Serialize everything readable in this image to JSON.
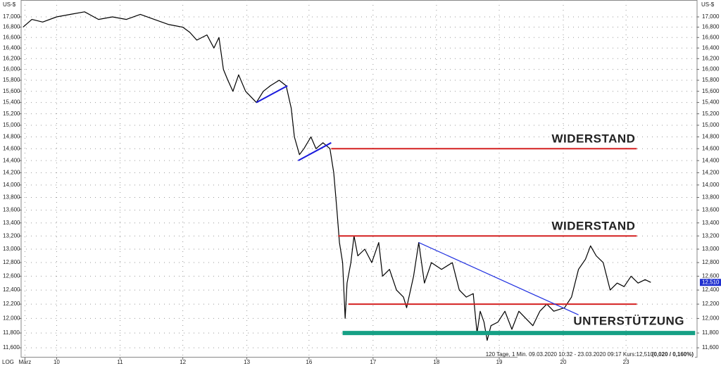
{
  "chart_data": {
    "type": "line",
    "log_scale": true,
    "grid": true,
    "unit": "US-$",
    "scale_label": "LOG",
    "footer": "120 Tage, 1 Min. 09.03.2020 10:32 - 23.03.2020 09:17 Kurs:12,510",
    "footer_bold": "(0,020 / 0,160%)",
    "last_value": 12510,
    "last_label": "12,510",
    "color": "#000000",
    "x": [
      -0.03,
      0.11,
      0.28,
      0.5,
      0.72,
      0.94,
      1.16,
      1.38,
      1.6,
      1.82,
      2.04,
      2.27,
      2.49,
      2.6,
      2.71,
      2.87,
      2.98,
      3.06,
      3.13,
      3.2,
      3.28,
      3.37,
      3.48,
      3.65,
      3.76,
      3.87,
      4.01,
      4.12,
      4.2,
      4.25,
      4.33,
      4.4,
      4.51,
      4.59,
      4.7,
      4.81,
      4.87,
      4.92,
      4.96,
      5.01,
      5.05,
      5.08,
      5.14,
      5.19,
      5.25,
      5.36,
      5.47,
      5.58,
      5.64,
      5.75,
      5.86,
      5.97,
      6.02,
      6.13,
      6.21,
      6.3,
      6.41,
      6.57,
      6.74,
      6.85,
      6.96,
      7.07,
      7.13,
      7.18,
      7.24,
      7.29,
      7.35,
      7.46,
      7.57,
      7.68,
      7.79,
      7.9,
      8.01,
      8.12,
      8.23,
      8.34,
      8.51,
      8.62,
      8.73,
      8.84,
      8.92,
      9.01,
      9.12,
      9.23,
      9.34,
      9.45,
      9.56,
      9.67,
      9.78,
      9.87
    ],
    "values": [
      16800,
      16950,
      16900,
      17000,
      17050,
      17100,
      16950,
      17000,
      16950,
      17050,
      16950,
      16850,
      16800,
      16700,
      16550,
      16650,
      16400,
      16600,
      16000,
      15800,
      15600,
      15900,
      15600,
      15400,
      15600,
      15700,
      15800,
      15700,
      15300,
      14800,
      14500,
      14600,
      14800,
      14600,
      14700,
      14600,
      14200,
      13600,
      13100,
      12800,
      12000,
      12500,
      12800,
      13200,
      12900,
      13000,
      12800,
      13100,
      12600,
      12700,
      12400,
      12300,
      12150,
      12600,
      13100,
      12500,
      12800,
      12700,
      12800,
      12400,
      12300,
      12350,
      11800,
      12100,
      11950,
      11700,
      11900,
      11950,
      12100,
      11850,
      12100,
      12000,
      11900,
      12100,
      12200,
      12100,
      12150,
      12300,
      12700,
      12850,
      13050,
      12900,
      12800,
      12400,
      12500,
      12450,
      12600,
      12500,
      12550,
      12510
    ],
    "xlim": [
      -0.06,
      10.6
    ],
    "xticks": [
      {
        "value": 0,
        "label": "März"
      },
      {
        "value": 0.5,
        "label": "10"
      },
      {
        "value": 1.5,
        "label": "11"
      },
      {
        "value": 2.49,
        "label": "12"
      },
      {
        "value": 3.5,
        "label": "13"
      },
      {
        "value": 4.48,
        "label": "16"
      },
      {
        "value": 5.49,
        "label": "17"
      },
      {
        "value": 6.49,
        "label": "18"
      },
      {
        "value": 7.48,
        "label": "19"
      },
      {
        "value": 8.49,
        "label": "20"
      },
      {
        "value": 9.48,
        "label": "23"
      }
    ],
    "ylim": [
      11470,
      17335
    ],
    "yticks": [
      {
        "value": 11600,
        "label": "11,600"
      },
      {
        "value": 11800,
        "label": "11,800"
      },
      {
        "value": 12000,
        "label": "12,000"
      },
      {
        "value": 12200,
        "label": "12,200"
      },
      {
        "value": 12400,
        "label": "12,400"
      },
      {
        "value": 12600,
        "label": "12,600"
      },
      {
        "value": 12800,
        "label": "12,800"
      },
      {
        "value": 13000,
        "label": "13,000"
      },
      {
        "value": 13200,
        "label": "13,200"
      },
      {
        "value": 13400,
        "label": "13,400"
      },
      {
        "value": 13600,
        "label": "13,600"
      },
      {
        "value": 13800,
        "label": "13,800"
      },
      {
        "value": 14000,
        "label": "14,000"
      },
      {
        "value": 14200,
        "label": "14,200"
      },
      {
        "value": 14400,
        "label": "14,400"
      },
      {
        "value": 14600,
        "label": "14,600"
      },
      {
        "value": 14800,
        "label": "14,800"
      },
      {
        "value": 15000,
        "label": "15,000"
      },
      {
        "value": 15200,
        "label": "15,200"
      },
      {
        "value": 15400,
        "label": "15,400"
      },
      {
        "value": 15600,
        "label": "15,600"
      },
      {
        "value": 15800,
        "label": "15,800"
      },
      {
        "value": 16000,
        "label": "16,000"
      },
      {
        "value": 16200,
        "label": "16,200"
      },
      {
        "value": 16400,
        "label": "16,400"
      },
      {
        "value": 16600,
        "label": "16,600"
      },
      {
        "value": 16800,
        "label": "16,800"
      },
      {
        "value": 17000,
        "label": "17,000"
      }
    ],
    "lines": [
      {
        "x": [
          3.65,
          4.14
        ],
        "y": [
          15400,
          15700
        ],
        "color": "#1a1adc",
        "width": 2
      },
      {
        "x": [
          4.31,
          4.83
        ],
        "y": [
          14400,
          14700
        ],
        "color": "#1a1adc",
        "width": 2
      },
      {
        "x": [
          4.83,
          9.65
        ],
        "y": [
          14600,
          14600
        ],
        "color": "#d42020",
        "width": 2,
        "label": "WIDERSTAND"
      },
      {
        "x": [
          4.94,
          9.65
        ],
        "y": [
          13200,
          13200
        ],
        "color": "#d42020",
        "width": 2,
        "label": "WIDERSTAND"
      },
      {
        "x": [
          5.1,
          9.65
        ],
        "y": [
          12200,
          12200
        ],
        "color": "#d42020",
        "width": 2
      },
      {
        "x": [
          6.21,
          8.73
        ],
        "y": [
          13100,
          12050
        ],
        "color": "#2030e0",
        "width": 1.2
      },
      {
        "x": [
          5.01,
          10.57
        ],
        "y": [
          11800,
          11800
        ],
        "color": "#16a085",
        "width": 6,
        "label": "UNTERSTÜTZUNG"
      }
    ]
  }
}
